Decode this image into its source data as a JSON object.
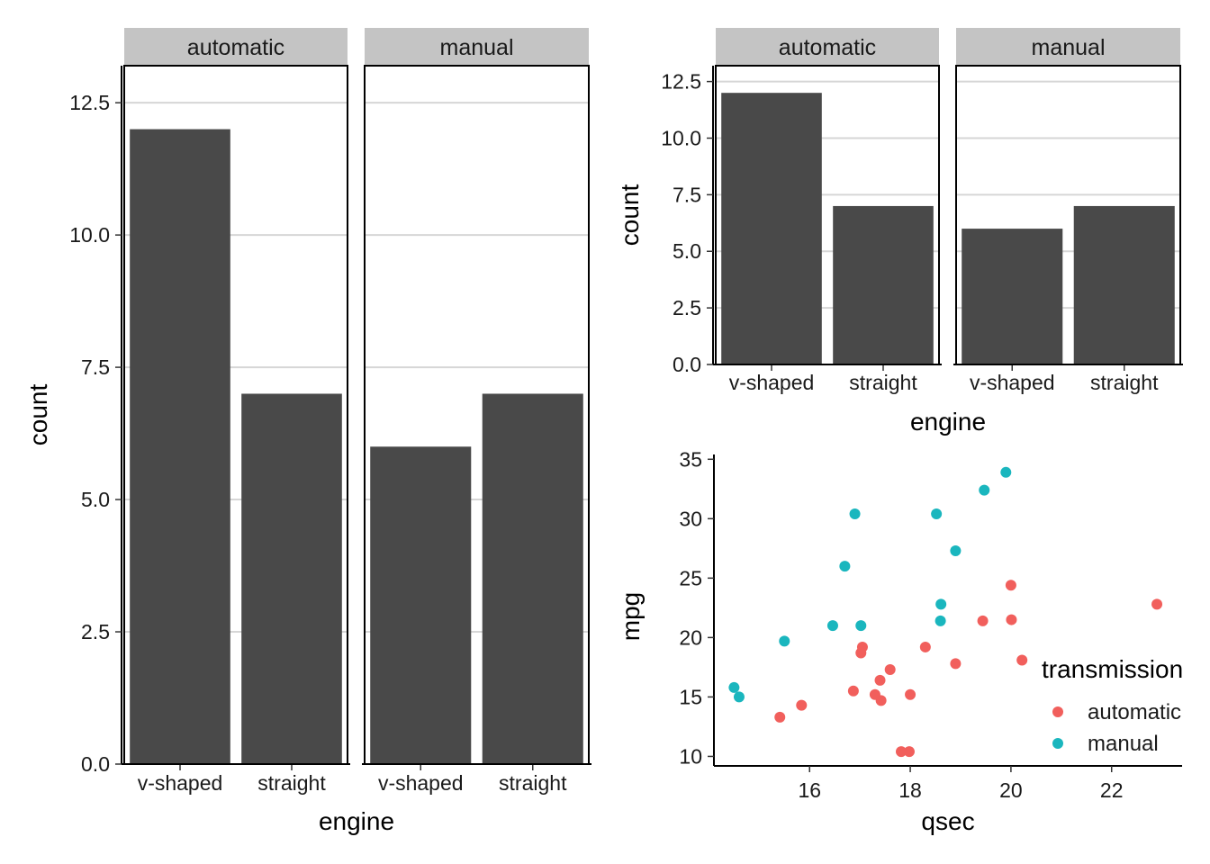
{
  "colors": {
    "bar": "#494949",
    "strip_bg": "#c4c4c4",
    "grid": "#d6d6d6",
    "automatic": "#f15f5c",
    "manual": "#1ab6be"
  },
  "chart_data": [
    {
      "type": "bar",
      "facets": [
        "automatic",
        "manual"
      ],
      "categories": [
        "v-shaped",
        "straight"
      ],
      "series": [
        {
          "facet": "automatic",
          "values": [
            12,
            7
          ]
        },
        {
          "facet": "manual",
          "values": [
            6,
            7
          ]
        }
      ],
      "xlabel": "engine",
      "ylabel": "count",
      "ylim": [
        0,
        13.2
      ],
      "yticks": [
        "0.0",
        "2.5",
        "5.0",
        "7.5",
        "10.0",
        "12.5"
      ],
      "grid": "horizontal"
    },
    {
      "type": "bar",
      "facets": [
        "automatic",
        "manual"
      ],
      "categories": [
        "v-shaped",
        "straight"
      ],
      "series": [
        {
          "facet": "automatic",
          "values": [
            12,
            7
          ]
        },
        {
          "facet": "manual",
          "values": [
            6,
            7
          ]
        }
      ],
      "xlabel": "engine",
      "ylabel": "count",
      "ylim": [
        0,
        13.2
      ],
      "yticks": [
        "0.0",
        "2.5",
        "5.0",
        "7.5",
        "10.0",
        "12.5"
      ],
      "grid": "horizontal"
    },
    {
      "type": "scatter",
      "xlabel": "qsec",
      "ylabel": "mpg",
      "xlim": [
        14.1,
        23.4
      ],
      "ylim": [
        9.2,
        35.4
      ],
      "xticks": [
        "16",
        "18",
        "20",
        "22"
      ],
      "yticks": [
        "10",
        "15",
        "20",
        "25",
        "30",
        "35"
      ],
      "legend": {
        "title": "transmission",
        "position": "right",
        "entries": [
          "automatic",
          "manual"
        ]
      },
      "series": [
        {
          "name": "automatic",
          "points": [
            [
              19.44,
              21.4
            ],
            [
              17.02,
              18.7
            ],
            [
              20.22,
              18.1
            ],
            [
              15.84,
              14.3
            ],
            [
              20.0,
              24.4
            ],
            [
              22.9,
              22.8
            ],
            [
              18.3,
              19.2
            ],
            [
              18.9,
              17.8
            ],
            [
              17.4,
              16.4
            ],
            [
              17.6,
              17.3
            ],
            [
              18.0,
              15.2
            ],
            [
              17.98,
              10.4
            ],
            [
              17.82,
              10.4
            ],
            [
              17.42,
              14.7
            ],
            [
              20.01,
              21.5
            ],
            [
              16.87,
              15.5
            ],
            [
              17.3,
              15.2
            ],
            [
              15.41,
              13.3
            ],
            [
              17.05,
              19.2
            ]
          ]
        },
        {
          "name": "manual",
          "points": [
            [
              16.46,
              21.0
            ],
            [
              17.02,
              21.0
            ],
            [
              18.61,
              22.8
            ],
            [
              19.47,
              32.4
            ],
            [
              18.52,
              30.4
            ],
            [
              19.9,
              33.9
            ],
            [
              18.9,
              27.3
            ],
            [
              16.7,
              26.0
            ],
            [
              16.9,
              30.4
            ],
            [
              14.5,
              15.8
            ],
            [
              15.5,
              19.7
            ],
            [
              14.6,
              15.0
            ],
            [
              18.6,
              21.4
            ]
          ]
        }
      ]
    }
  ]
}
